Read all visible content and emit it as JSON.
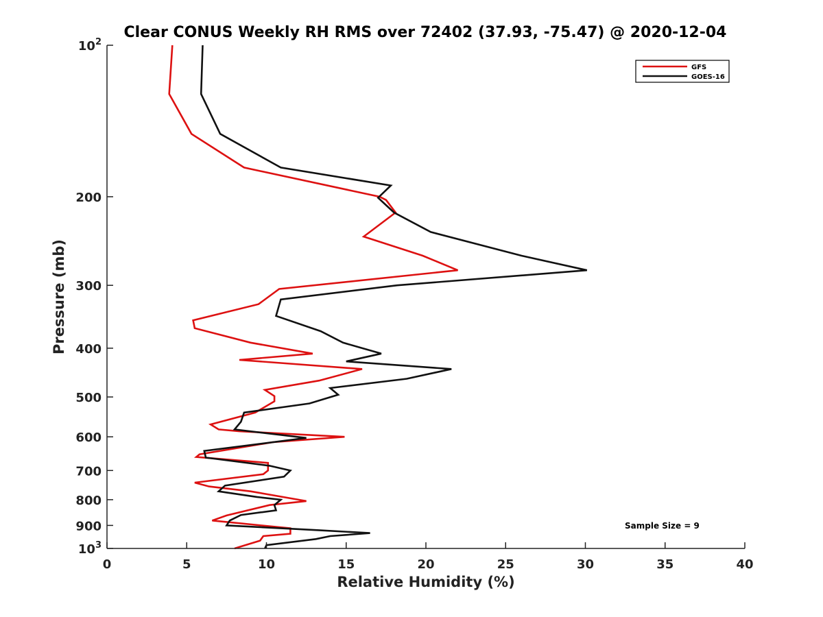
{
  "chart_data": {
    "type": "line",
    "title": "Clear CONUS Weekly RH RMS over 72402 (37.93, -75.47) @ 2020-12-04",
    "xlabel": "Relative Humidity (%)",
    "ylabel": "Pressure (mb)",
    "xlim": [
      0,
      40
    ],
    "ylim": [
      100,
      1000
    ],
    "yscale": "log",
    "y_reversed": true,
    "xticks": [
      0,
      5,
      10,
      15,
      20,
      25,
      30,
      35,
      40
    ],
    "xtick_labels": [
      "0",
      "5",
      "10",
      "15",
      "20",
      "25",
      "30",
      "35",
      "40"
    ],
    "yticks": [
      100,
      200,
      300,
      400,
      500,
      600,
      700,
      800,
      900,
      1000
    ],
    "ytick_labels": [
      "10^2",
      "200",
      "300",
      "400",
      "500",
      "600",
      "700",
      "800",
      "900",
      "10^3"
    ],
    "grid": false,
    "legend": "top-right",
    "annotation": "Sample Size = 9",
    "series": [
      {
        "name": "GFS",
        "color": "#dd1111",
        "points": [
          [
            4.1,
            100
          ],
          [
            3.9,
            125
          ],
          [
            5.3,
            150
          ],
          [
            8.6,
            175
          ],
          [
            17.1,
            200
          ],
          [
            17.5,
            203
          ],
          [
            18.1,
            215
          ],
          [
            16.1,
            240
          ],
          [
            19.8,
            262
          ],
          [
            22.0,
            280
          ],
          [
            10.8,
            305
          ],
          [
            9.5,
            327
          ],
          [
            5.4,
            352
          ],
          [
            5.5,
            365
          ],
          [
            9.0,
            390
          ],
          [
            12.9,
            410
          ],
          [
            8.3,
            422
          ],
          [
            16.0,
            440
          ],
          [
            13.3,
            464
          ],
          [
            9.9,
            484
          ],
          [
            10.5,
            498
          ],
          [
            10.5,
            510
          ],
          [
            9.3,
            537
          ],
          [
            6.5,
            567
          ],
          [
            7.0,
            580
          ],
          [
            8.3,
            585
          ],
          [
            14.9,
            600
          ],
          [
            10.4,
            615
          ],
          [
            5.8,
            650
          ],
          [
            5.6,
            658
          ],
          [
            10.1,
            676
          ],
          [
            10.1,
            700
          ],
          [
            9.8,
            712
          ],
          [
            5.5,
            740
          ],
          [
            6.4,
            753
          ],
          [
            9.0,
            770
          ],
          [
            12.5,
            805
          ],
          [
            10.2,
            820
          ],
          [
            7.5,
            860
          ],
          [
            6.6,
            880
          ],
          [
            11.5,
            912
          ],
          [
            11.5,
            935
          ],
          [
            9.8,
            945
          ],
          [
            9.6,
            965
          ],
          [
            8.0,
            1000
          ]
        ]
      },
      {
        "name": "GOES-16",
        "color": "#111111",
        "points": [
          [
            6.0,
            100
          ],
          [
            5.9,
            125
          ],
          [
            7.1,
            150
          ],
          [
            10.9,
            175
          ],
          [
            17.8,
            190
          ],
          [
            17.0,
            201
          ],
          [
            18.0,
            215
          ],
          [
            20.3,
            235
          ],
          [
            26.0,
            262
          ],
          [
            30.1,
            280
          ],
          [
            18.2,
            300
          ],
          [
            10.9,
            320
          ],
          [
            10.6,
            345
          ],
          [
            13.4,
            370
          ],
          [
            14.8,
            390
          ],
          [
            17.2,
            410
          ],
          [
            15.0,
            425
          ],
          [
            21.6,
            440
          ],
          [
            18.8,
            460
          ],
          [
            14.0,
            480
          ],
          [
            14.5,
            495
          ],
          [
            12.7,
            515
          ],
          [
            8.6,
            537
          ],
          [
            8.4,
            560
          ],
          [
            8.0,
            580
          ],
          [
            12.5,
            603
          ],
          [
            6.1,
            640
          ],
          [
            6.2,
            660
          ],
          [
            10.2,
            685
          ],
          [
            11.5,
            700
          ],
          [
            11.1,
            720
          ],
          [
            7.4,
            750
          ],
          [
            7.0,
            770
          ],
          [
            9.4,
            790
          ],
          [
            10.9,
            800
          ],
          [
            10.5,
            820
          ],
          [
            10.6,
            840
          ],
          [
            8.4,
            858
          ],
          [
            7.7,
            880
          ],
          [
            7.5,
            900
          ],
          [
            13.3,
            920
          ],
          [
            16.5,
            932
          ],
          [
            14.0,
            945
          ],
          [
            13.1,
            958
          ],
          [
            10.0,
            985
          ],
          [
            9.9,
            1000
          ]
        ]
      }
    ]
  }
}
